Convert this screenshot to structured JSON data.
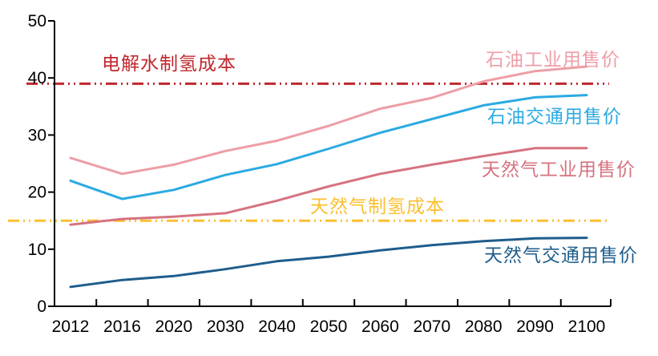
{
  "chart_data": {
    "type": "line",
    "title": "",
    "xlabel": "",
    "ylabel": "",
    "categories": [
      "2012",
      "2016",
      "2020",
      "2030",
      "2040",
      "2050",
      "2060",
      "2070",
      "2080",
      "2090",
      "2100"
    ],
    "ylim": [
      0,
      50
    ],
    "yticks": [
      0,
      10,
      20,
      30,
      40,
      50
    ],
    "grid": false,
    "legend_position": "inline-labels-right",
    "axis_color": "#000000",
    "tick_label_color": "#000000",
    "series": [
      {
        "name": "石油工业用售价",
        "color": "#ED9EA6",
        "values": [
          26,
          23.2,
          24.8,
          27.2,
          29,
          31.6,
          34.6,
          36.5,
          39.4,
          41.2,
          42
        ]
      },
      {
        "name": "石油交通用售价",
        "color": "#2BAAE1",
        "values": [
          22,
          18.8,
          20.4,
          23,
          24.9,
          27.6,
          30.4,
          32.8,
          35.2,
          36.6,
          37
        ]
      },
      {
        "name": "天然气工业用售价",
        "color": "#D5737F",
        "values": [
          14.3,
          15.3,
          15.7,
          16.3,
          18.5,
          21,
          23.2,
          24.8,
          26.3,
          27.7,
          27.7
        ]
      },
      {
        "name": "天然气交通用售价",
        "color": "#1F5D8C",
        "values": [
          3.4,
          4.6,
          5.3,
          6.5,
          7.9,
          8.7,
          9.8,
          10.7,
          11.4,
          11.9,
          12
        ]
      }
    ],
    "reference_lines": [
      {
        "name": "电解水制氢成本",
        "value": 39,
        "color": "#C0272D",
        "style": "dash-dot-dot"
      },
      {
        "name": "天然气制氢成本",
        "value": 15,
        "color": "#FBBF2F",
        "style": "dash-dot-dot"
      }
    ]
  }
}
